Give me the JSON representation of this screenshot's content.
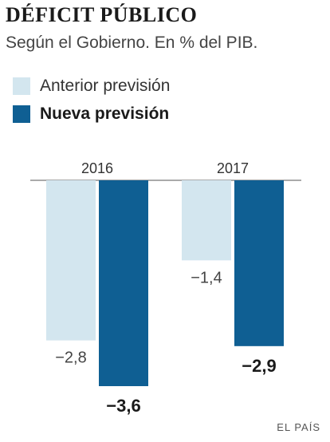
{
  "header": {
    "title": "DÉFICIT PÚBLICO",
    "subtitle": "Según el Gobierno. En % del PIB."
  },
  "legend": [
    {
      "label": "Anterior previsión",
      "color": "#d3e6ef",
      "bold": false
    },
    {
      "label": "Nueva previsión",
      "color": "#0f5f93",
      "bold": true
    }
  ],
  "source": "EL PAÍS",
  "chart_data": {
    "type": "bar",
    "categories": [
      "2016",
      "2017"
    ],
    "series": [
      {
        "name": "Anterior previsión",
        "values": [
          -2.8,
          -1.4
        ],
        "labels": [
          "−2,8",
          "−1,4"
        ],
        "color": "#d3e6ef"
      },
      {
        "name": "Nueva previsión",
        "values": [
          -3.6,
          -2.9
        ],
        "labels": [
          "−3,6",
          "−2,9"
        ],
        "color": "#0f5f93"
      }
    ],
    "title": "DÉFICIT PÚBLICO",
    "subtitle": "Según el Gobierno. En % del PIB.",
    "ylim": [
      -3.6,
      0
    ],
    "category_axis": "top",
    "grid": false,
    "legend_position": "top-left"
  }
}
